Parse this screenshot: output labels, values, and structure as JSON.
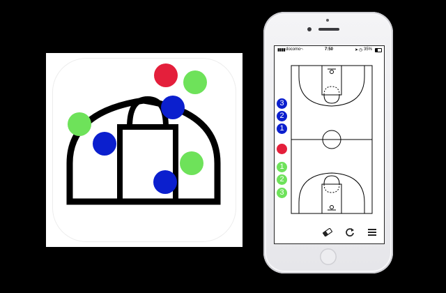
{
  "colors": {
    "background": "#000000",
    "team_blue": "#0b1fce",
    "team_red": "#e41f3b",
    "team_green": "#6ee25a",
    "court_line": "#000000"
  },
  "status_bar": {
    "carrier": "docomo",
    "time": "7:50",
    "battery": "35%",
    "icons": [
      "signal-icon",
      "wifi-icon",
      "location-icon",
      "alarm-icon",
      "battery-icon"
    ]
  },
  "players": {
    "blue": [
      "3",
      "2",
      "1"
    ],
    "red": [
      ""
    ],
    "green": [
      "1",
      "2",
      "3"
    ]
  },
  "toolbar": {
    "items": [
      {
        "name": "eraser-button",
        "icon": "eraser-icon"
      },
      {
        "name": "reset-button",
        "icon": "refresh-icon"
      },
      {
        "name": "menu-button",
        "icon": "menu-icon"
      }
    ]
  }
}
